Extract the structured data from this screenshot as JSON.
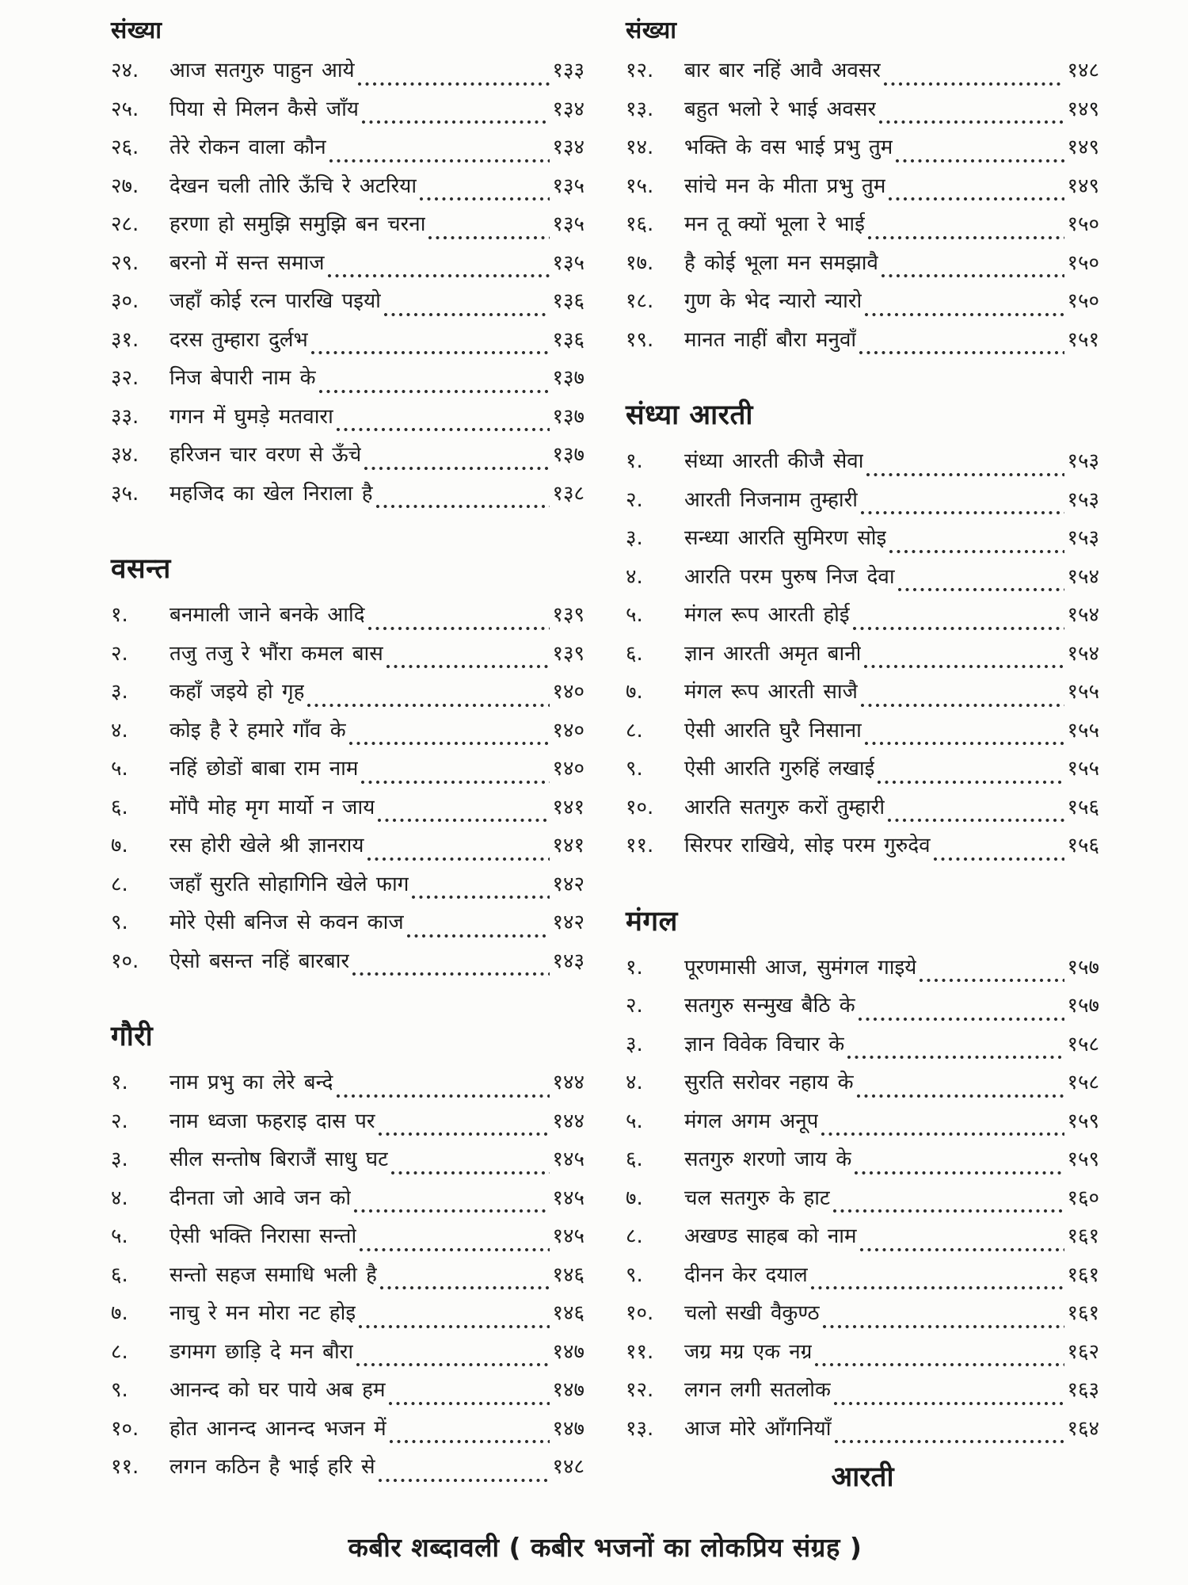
{
  "footer": "कबीर शब्दावली ( कबीर भजनों का लोकप्रिय संग्रह )",
  "left_column": {
    "header": "संख्या",
    "sections": [
      {
        "title": "",
        "items": [
          {
            "num": "२४",
            "title": "आज सतगुरु पाहुन आये",
            "page": "१३३"
          },
          {
            "num": "२५",
            "title": "पिया से मिलन कैसे जाँय",
            "page": "१३४"
          },
          {
            "num": "२६",
            "title": "तेरे रोकन वाला कौन",
            "page": "१३४"
          },
          {
            "num": "२७",
            "title": "देखन चली तोरि ऊँचि रे अटरिया",
            "page": "१३५"
          },
          {
            "num": "२८",
            "title": "हरणा हो समुझि समुझि बन चरना",
            "page": "१३५"
          },
          {
            "num": "२९",
            "title": "बरनो में सन्त समाज",
            "page": "१३५"
          },
          {
            "num": "३०",
            "title": "जहाँ कोई रत्न पारखि पइयो",
            "page": "१३६"
          },
          {
            "num": "३१",
            "title": "दरस तुम्हारा दुर्लभ",
            "page": "१३६"
          },
          {
            "num": "३२",
            "title": "निज बेपारी नाम के",
            "page": "१३७"
          },
          {
            "num": "३३",
            "title": "गगन में घुमड़े मतवारा",
            "page": "१३७"
          },
          {
            "num": "३४",
            "title": "हरिजन चार वरण से ऊँचे",
            "page": "१३७"
          },
          {
            "num": "३५",
            "title": "महजिद का खेल निराला है",
            "page": "१३८"
          }
        ]
      },
      {
        "title": "वसन्त",
        "items": [
          {
            "num": "१",
            "title": "बनमाली जाने बनके आदि",
            "page": "१३९"
          },
          {
            "num": "२",
            "title": "तजु तजु रे भौंरा कमल बास",
            "page": "१३९"
          },
          {
            "num": "३",
            "title": "कहाँ जइये हो गृह",
            "page": "१४०"
          },
          {
            "num": "४",
            "title": "कोइ है रे हमारे गाँव के",
            "page": "१४०"
          },
          {
            "num": "५",
            "title": "नहिं छोडों बाबा राम नाम",
            "page": "१४०"
          },
          {
            "num": "६",
            "title": "मोंपै मोह मृग मार्यो न जाय",
            "page": "१४१"
          },
          {
            "num": "७",
            "title": "रस होरी खेले श्री ज्ञानराय",
            "page": "१४१"
          },
          {
            "num": "८",
            "title": "जहाँ सुरति सोहागिनि खेले फाग",
            "page": "१४२"
          },
          {
            "num": "९",
            "title": "मोरे ऐसी बनिज से कवन काज",
            "page": "१४२"
          },
          {
            "num": "१०",
            "title": "ऐसो बसन्त नहिं बारबार",
            "page": "१४३"
          }
        ]
      },
      {
        "title": "गौरी",
        "items": [
          {
            "num": "१",
            "title": "नाम प्रभु का लेरे बन्दे",
            "page": "१४४"
          },
          {
            "num": "२",
            "title": "नाम ध्वजा फहराइ दास पर",
            "page": "१४४"
          },
          {
            "num": "३",
            "title": "सील सन्तोष बिराजैं साधु घट",
            "page": "१४५"
          },
          {
            "num": "४",
            "title": "दीनता जो आवे जन को",
            "page": "१४५"
          },
          {
            "num": "५",
            "title": "ऐसी भक्ति निरासा सन्तो",
            "page": "१४५"
          },
          {
            "num": "६",
            "title": "सन्तो सहज समाधि भली है",
            "page": "१४६"
          },
          {
            "num": "७",
            "title": "नाचु रे मन मोरा नट होइ",
            "page": "१४६"
          },
          {
            "num": "८",
            "title": "डगमग छाड़ि दे मन बौरा",
            "page": "१४७"
          },
          {
            "num": "९",
            "title": "आनन्द को घर पाये अब हम",
            "page": "१४७"
          },
          {
            "num": "१०",
            "title": "होत आनन्द आनन्द भजन में",
            "page": "१४७"
          },
          {
            "num": "११",
            "title": "लगन कठिन है भाई हरि से",
            "page": "१४८"
          }
        ]
      }
    ]
  },
  "right_column": {
    "header": "संख्या",
    "trailing_heading": "आरती",
    "sections": [
      {
        "title": "",
        "items": [
          {
            "num": "१२",
            "title": "बार बार नहिं आवै अवसर",
            "page": "१४८"
          },
          {
            "num": "१३",
            "title": "बहुत भलो रे भाई अवसर",
            "page": "१४९"
          },
          {
            "num": "१४",
            "title": "भक्ति के वस भाई प्रभु तुम",
            "page": "१४९"
          },
          {
            "num": "१५",
            "title": "सांचे मन के मीता प्रभु तुम",
            "page": "१४९"
          },
          {
            "num": "१६",
            "title": "मन तू क्यों भूला रे भाई",
            "page": "१५०"
          },
          {
            "num": "१७",
            "title": "है कोई भूला मन समझावै",
            "page": "१५०"
          },
          {
            "num": "१८",
            "title": "गुण के भेद न्यारो न्यारो",
            "page": "१५०"
          },
          {
            "num": "१९",
            "title": "मानत नाहीं बौरा मनुवाँ",
            "page": "१५१"
          }
        ]
      },
      {
        "title": "संध्या आरती",
        "items": [
          {
            "num": "१",
            "title": "संध्या आरती कीजै सेवा",
            "page": "१५३"
          },
          {
            "num": "२",
            "title": "आरती निजनाम तुम्हारी",
            "page": "१५३"
          },
          {
            "num": "३",
            "title": "सन्ध्या आरति सुमिरण सोइ",
            "page": "१५३"
          },
          {
            "num": "४",
            "title": "आरति परम पुरुष निज देवा",
            "page": "१५४"
          },
          {
            "num": "५",
            "title": "मंगल रूप आरती होई",
            "page": "१५४"
          },
          {
            "num": "६",
            "title": "ज्ञान आरती अमृत बानी",
            "page": "१५४"
          },
          {
            "num": "७",
            "title": "मंगल रूप आरती साजै",
            "page": "१५५"
          },
          {
            "num": "८",
            "title": "ऐसी आरति घुरै निसाना",
            "page": "१५५"
          },
          {
            "num": "९",
            "title": "ऐसी आरति गुरुहिं लखाई",
            "page": "१५५"
          },
          {
            "num": "१०",
            "title": "आरति सतगुरु करों तुम्हारी",
            "page": "१५६"
          },
          {
            "num": "११",
            "title": "सिरपर राखिये, सोइ परम गुरुदेव",
            "page": "१५६"
          }
        ]
      },
      {
        "title": "मंगल",
        "items": [
          {
            "num": "१",
            "title": "पूरणमासी आज, सुमंगल गाइये",
            "page": "१५७"
          },
          {
            "num": "२",
            "title": "सतगुरु सन्मुख बैठि के",
            "page": "१५७"
          },
          {
            "num": "३",
            "title": "ज्ञान विवेक विचार के",
            "page": "१५८"
          },
          {
            "num": "४",
            "title": "सुरति सरोवर नहाय के",
            "page": "१५८"
          },
          {
            "num": "५",
            "title": "मंगल अगम अनूप",
            "page": "१५९"
          },
          {
            "num": "६",
            "title": "सतगुरु शरणो जाय के",
            "page": "१५९"
          },
          {
            "num": "७",
            "title": "चल सतगुरु के हाट",
            "page": "१६०"
          },
          {
            "num": "८",
            "title": "अखण्ड साहब को नाम",
            "page": "१६१"
          },
          {
            "num": "९",
            "title": "दीनन केर दयाल",
            "page": "१६१"
          },
          {
            "num": "१०",
            "title": "चलो सखी वैकुण्ठ",
            "page": "१६१"
          },
          {
            "num": "११",
            "title": "जग्र मग्र एक नग्र",
            "page": "१६२"
          },
          {
            "num": "१२",
            "title": "लगन लगी सतलोक",
            "page": "१६३"
          },
          {
            "num": "१३",
            "title": "आज मोरे आँगनियाँ",
            "page": "१६४"
          }
        ]
      }
    ]
  }
}
